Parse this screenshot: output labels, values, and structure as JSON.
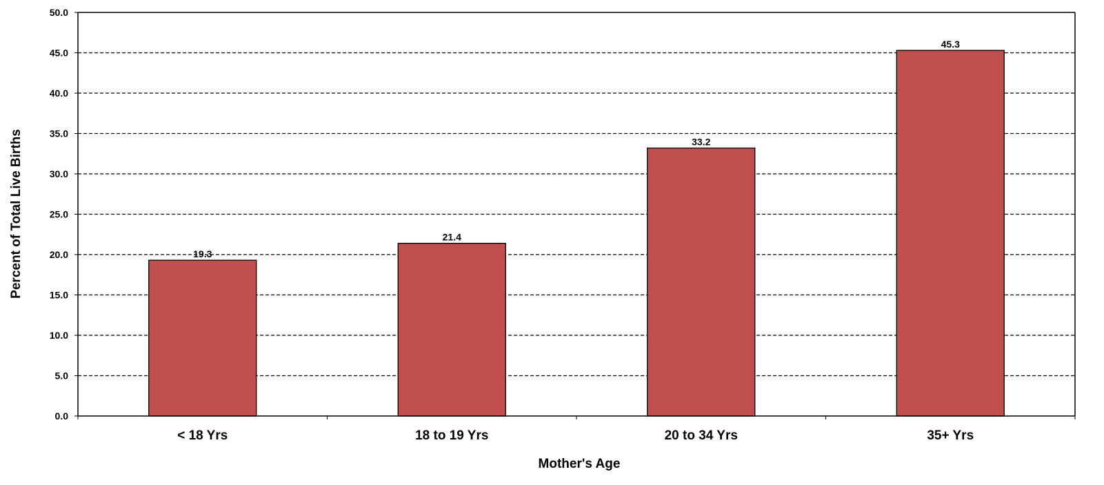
{
  "chart_data": {
    "type": "bar",
    "title": "",
    "xlabel": "Mother's Age",
    "ylabel": "Percent of Total Live Births",
    "categories": [
      "< 18 Yrs",
      "18 to 19 Yrs",
      "20 to 34 Yrs",
      "35+ Yrs"
    ],
    "values": [
      19.3,
      21.4,
      33.2,
      45.3
    ],
    "data_labels": [
      "19.3",
      "21.4",
      "33.2",
      "45.3"
    ],
    "ylim": [
      0,
      50
    ],
    "y_ticks": [
      "0.0",
      "5.0",
      "10.0",
      "15.0",
      "20.0",
      "25.0",
      "30.0",
      "35.0",
      "40.0",
      "45.0",
      "50.0"
    ],
    "grid": "horizontal dashed",
    "legend": "none",
    "colors": {
      "bar_fill": "#c0504d",
      "bar_stroke": "#000000",
      "gridline": "#000000",
      "background": "#ffffff"
    }
  }
}
